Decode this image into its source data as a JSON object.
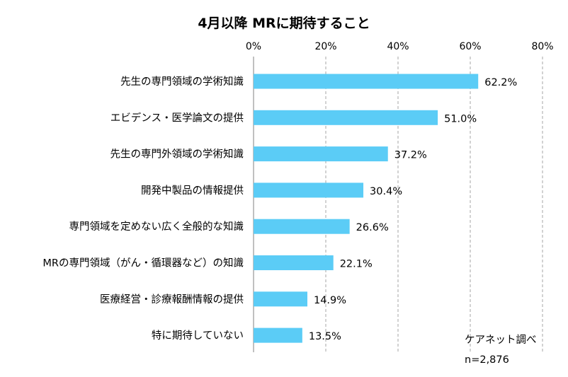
{
  "chart_data": {
    "type": "bar",
    "orientation": "horizontal",
    "title": "4月以降 MRに期待すること",
    "categories": [
      "先生の専門領域の学術知識",
      "エビデンス・医学論文の提供",
      "先生の専門外領域の学術知識",
      "開発中製品の情報提供",
      "専門領域を定めない広く全般的な知識",
      "MRの専門領域（がん・循環器など）の知識",
      "医療経営・診療報酬情報の提供",
      "特に期待していない"
    ],
    "values": [
      62.2,
      51.0,
      37.2,
      30.4,
      26.6,
      22.1,
      14.9,
      13.5
    ],
    "value_labels": [
      "62.2%",
      "51.0%",
      "37.2%",
      "30.4%",
      "26.6%",
      "22.1%",
      "14.9%",
      "13.5%"
    ],
    "xlim": [
      0,
      80
    ],
    "x_ticks": [
      0,
      20,
      40,
      60,
      80
    ],
    "x_tick_labels": [
      "0%",
      "20%",
      "40%",
      "60%",
      "80%"
    ],
    "axis_position": "top",
    "grid": true,
    "bar_color": "#5BCCF6",
    "grid_color": "#a6a6a6"
  },
  "notes": {
    "source": "ケアネット調べ",
    "sample": "n=2,876"
  }
}
